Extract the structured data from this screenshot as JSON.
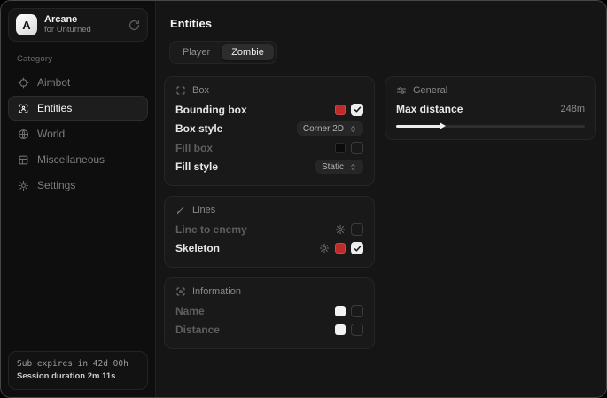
{
  "sidebar": {
    "brand": {
      "logo_letter": "A",
      "name": "Arcane",
      "subtitle": "for Unturned"
    },
    "category_label": "Category",
    "items": [
      {
        "label": "Aimbot",
        "icon": "crosshair-icon",
        "active": false
      },
      {
        "label": "Entities",
        "icon": "scan-person-icon",
        "active": true
      },
      {
        "label": "World",
        "icon": "globe-icon",
        "active": false
      },
      {
        "label": "Miscellaneous",
        "icon": "layout-grid-icon",
        "active": false
      },
      {
        "label": "Settings",
        "icon": "gear-icon",
        "active": false
      }
    ],
    "subscription": {
      "expires": "Sub expires in 42d 00h",
      "session": "Session duration 2m 11s"
    }
  },
  "main": {
    "title": "Entities",
    "tabs": [
      {
        "label": "Player",
        "active": false
      },
      {
        "label": "Zombie",
        "active": true
      }
    ]
  },
  "panels": {
    "box": {
      "title": "Box",
      "rows": [
        {
          "label": "Bounding box",
          "enabled": true,
          "swatch": "#c12a2a",
          "checked": true
        },
        {
          "label": "Box style",
          "enabled": true,
          "dropdown": "Corner 2D"
        },
        {
          "label": "Fill box",
          "enabled": false,
          "swatch": "#0b0b0b",
          "checked": false
        },
        {
          "label": "Fill style",
          "enabled": true,
          "dropdown": "Static"
        }
      ]
    },
    "lines": {
      "title": "Lines",
      "rows": [
        {
          "label": "Line to enemy",
          "enabled": false,
          "has_settings": true,
          "checked": false
        },
        {
          "label": "Skeleton",
          "enabled": true,
          "has_settings": true,
          "swatch": "#c12a2a",
          "checked": true
        }
      ]
    },
    "information": {
      "title": "Information",
      "rows": [
        {
          "label": "Name",
          "enabled": false,
          "swatch": "#f2f2f2",
          "checked": false
        },
        {
          "label": "Distance",
          "enabled": false,
          "swatch": "#f2f2f2",
          "checked": false
        }
      ]
    },
    "general": {
      "title": "General",
      "label": "Max distance",
      "value": "248m",
      "slider_percent": 24
    }
  },
  "colors": {
    "accent_red": "#c12a2a",
    "swatch_white": "#f2f2f2",
    "swatch_black": "#0b0b0b",
    "card_bg": "#191919",
    "sidebar_bg": "#0e0e0e"
  }
}
